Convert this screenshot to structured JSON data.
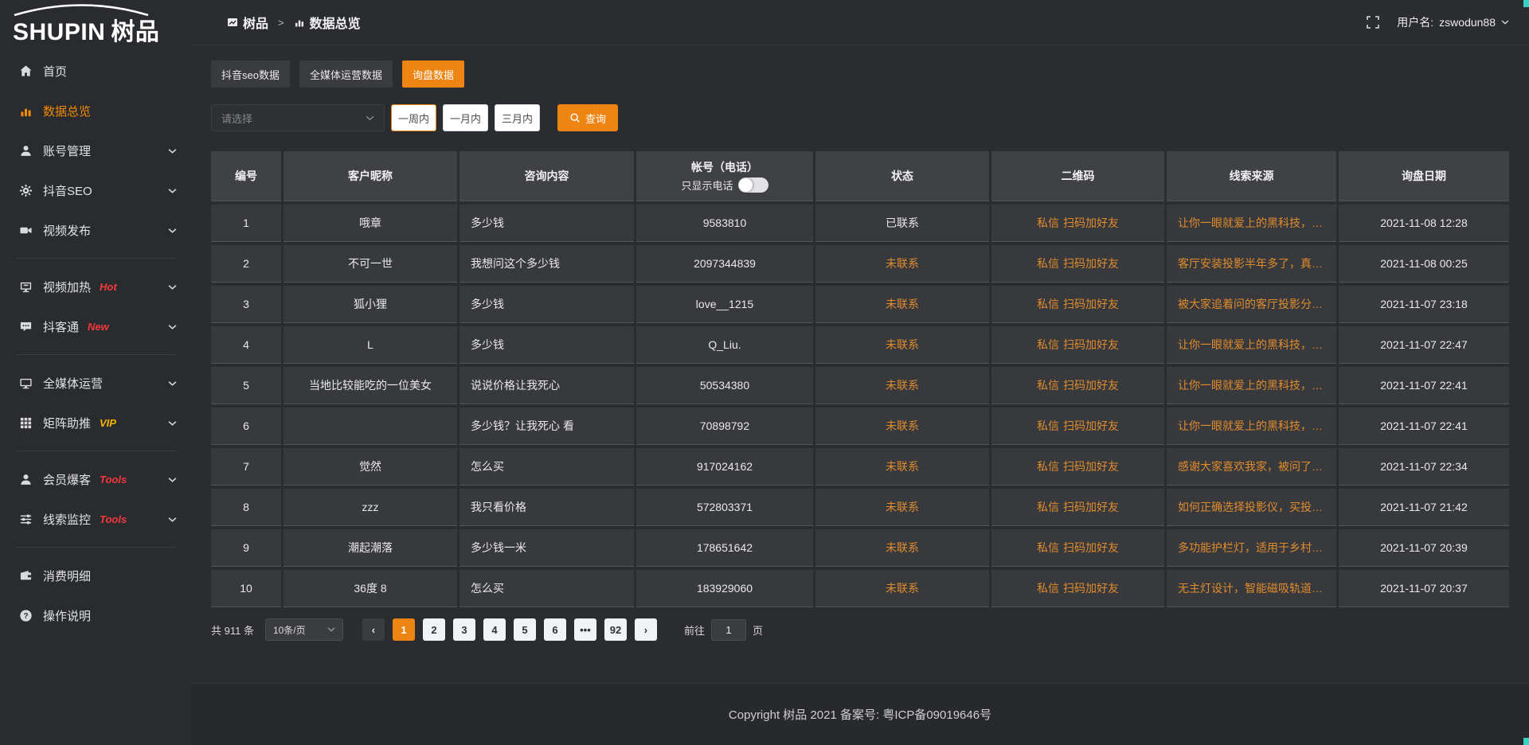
{
  "topbar": {
    "breadcrumb_home": "树品",
    "breadcrumb_separator": ">",
    "breadcrumb_current": "数据总览",
    "username_label": "用户名:",
    "username": "zswodun88"
  },
  "sidebar": {
    "logo_text": "SHUPIN",
    "logo_cn": "树品",
    "items": [
      {
        "label": "首页",
        "icon": "home-icon"
      },
      {
        "label": "数据总览",
        "icon": "chart-icon",
        "active": true
      },
      {
        "label": "账号管理",
        "icon": "user-icon",
        "expandable": true
      },
      {
        "label": "抖音SEO",
        "icon": "gear-icon",
        "expandable": true
      },
      {
        "label": "视频发布",
        "icon": "video-icon",
        "expandable": true
      },
      {
        "type": "divider"
      },
      {
        "label": "视频加热",
        "icon": "monitor-icon",
        "badge": "Hot",
        "badge_color": "#f5383d",
        "expandable": true
      },
      {
        "label": "抖客通",
        "icon": "chat-icon",
        "badge": "New",
        "badge_color": "#f5383d",
        "expandable": true
      },
      {
        "type": "divider"
      },
      {
        "label": "全媒体运营",
        "icon": "screen-icon",
        "expandable": true
      },
      {
        "label": "矩阵助推",
        "icon": "grid-icon",
        "badge": "VIP",
        "badge_color": "#f7b500",
        "expandable": true
      },
      {
        "type": "divider"
      },
      {
        "label": "会员爆客",
        "icon": "member-icon",
        "badge": "Tools",
        "badge_color": "#f5383d",
        "expandable": true
      },
      {
        "label": "线索监控",
        "icon": "sliders-icon",
        "badge": "Tools",
        "badge_color": "#f5383d",
        "expandable": true
      },
      {
        "type": "divider"
      },
      {
        "label": "消费明细",
        "icon": "wallet-icon"
      },
      {
        "label": "操作说明",
        "icon": "question-icon"
      }
    ]
  },
  "tabs": [
    {
      "label": "抖音seo数据"
    },
    {
      "label": "全媒体运营数据"
    },
    {
      "label": "询盘数据",
      "active": true
    }
  ],
  "filters": {
    "select_placeholder": "请选择",
    "period_buttons": [
      {
        "label": "一周内",
        "active": true
      },
      {
        "label": "一月内"
      },
      {
        "label": "三月内"
      }
    ],
    "search_label": "查询"
  },
  "table": {
    "headers": [
      "编号",
      "客户昵称",
      "咨询内容",
      "帐号（电话）",
      "状态",
      "二维码",
      "线索来源",
      "询盘日期"
    ],
    "phone_toggle_label": "只显示电话",
    "qr_link1": "私信",
    "qr_link2": "扫码加好友",
    "rows": [
      {
        "no": "1",
        "nickname": "哦章",
        "content": "多少钱",
        "account": "9583810",
        "status": "已联系",
        "contacted": true,
        "source": "让你一眼就爱上的黑科技，能...",
        "date": "2021-11-08 12:28"
      },
      {
        "no": "2",
        "nickname": "不可一世",
        "content": "我想问这个多少钱",
        "account": "2097344839",
        "status": "未联系",
        "contacted": false,
        "source": "客厅安装投影半年多了，真实...",
        "date": "2021-11-08 00:25"
      },
      {
        "no": "3",
        "nickname": "狐小狸",
        "content": "多少钱",
        "account": "love__1215",
        "status": "未联系",
        "contacted": false,
        "source": "被大家追着问的客厅投影分享...",
        "date": "2021-11-07 23:18"
      },
      {
        "no": "4",
        "nickname": "L",
        "content": "多少钱",
        "account": "Q_Liu.",
        "status": "未联系",
        "contacted": false,
        "source": "让你一眼就爱上的黑科技，能...",
        "date": "2021-11-07 22:47"
      },
      {
        "no": "5",
        "nickname": "当地比较能吃的一位美女",
        "content": "说说价格让我死心",
        "account": "50534380",
        "status": "未联系",
        "contacted": false,
        "source": "让你一眼就爱上的黑科技，能...",
        "date": "2021-11-07 22:41"
      },
      {
        "no": "6",
        "nickname": "",
        "content": "多少钱？让我死心 看",
        "account": "70898792",
        "status": "未联系",
        "contacted": false,
        "source": "让你一眼就爱上的黑科技，能...",
        "date": "2021-11-07 22:41"
      },
      {
        "no": "7",
        "nickname": "觉然",
        "content": "怎么买",
        "account": "917024162",
        "status": "未联系",
        "contacted": false,
        "source": "感谢大家喜欢我家，被问了好...",
        "date": "2021-11-07 22:34"
      },
      {
        "no": "8",
        "nickname": "zzz",
        "content": "我只看价格",
        "account": "572803371",
        "status": "未联系",
        "contacted": false,
        "source": "如何正确选择投影仪，买投影...",
        "date": "2021-11-07 21:42"
      },
      {
        "no": "9",
        "nickname": "潮起潮落",
        "content": "多少钱一米",
        "account": "178651642",
        "status": "未联系",
        "contacted": false,
        "source": "多功能护栏灯，适用于乡村文...",
        "date": "2021-11-07 20:39"
      },
      {
        "no": "10",
        "nickname": "36度 8",
        "content": "怎么买",
        "account": "183929060",
        "status": "未联系",
        "contacted": false,
        "source": "无主灯设计，智能磁吸轨道灯...",
        "date": "2021-11-07 20:37"
      }
    ]
  },
  "pagination": {
    "total_label": "共 911 条",
    "page_size": "10条/页",
    "pages": [
      "1",
      "2",
      "3",
      "4",
      "5",
      "6",
      "•••",
      "92"
    ],
    "active_page": "1",
    "goto_label": "前往",
    "goto_value": "1",
    "goto_suffix": "页"
  },
  "footer": {
    "copyright": "Copyright 树品 2021 备案号: 粤ICP备09019646号"
  },
  "colors": {
    "accent_orange": "#ee8512",
    "table_link_orange": "#e08c2d",
    "sidebar_active_orange": "#f08a00",
    "badge_red": "#f5383d",
    "badge_gold": "#f7b500",
    "scroll_accent": "#37d2c6"
  }
}
